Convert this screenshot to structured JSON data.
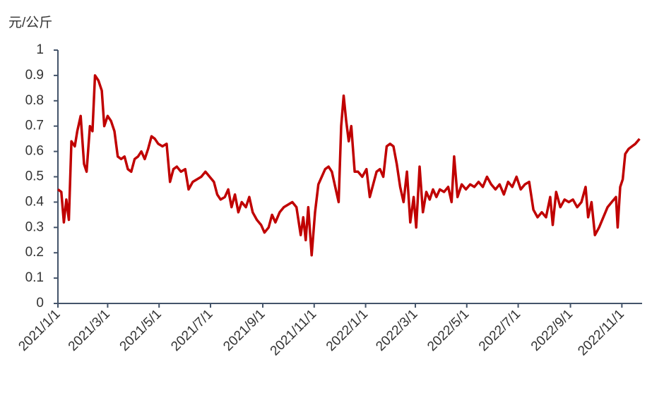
{
  "chart_data": {
    "type": "line",
    "y_label": "元/公斤",
    "x": [
      "2021/1/1",
      "2021/1/5",
      "2021/1/8",
      "2021/1/11",
      "2021/1/14",
      "2021/1/17",
      "2021/1/21",
      "2021/1/24",
      "2021/1/28",
      "2021/2/1",
      "2021/2/4",
      "2021/2/8",
      "2021/2/11",
      "2021/2/14",
      "2021/2/18",
      "2021/2/22",
      "2021/2/25",
      "2021/3/1",
      "2021/3/5",
      "2021/3/9",
      "2021/3/13",
      "2021/3/17",
      "2021/3/21",
      "2021/3/25",
      "2021/3/29",
      "2021/4/2",
      "2021/4/6",
      "2021/4/10",
      "2021/4/14",
      "2021/4/18",
      "2021/4/22",
      "2021/4/26",
      "2021/4/30",
      "2021/5/5",
      "2021/5/10",
      "2021/5/14",
      "2021/5/18",
      "2021/5/22",
      "2021/5/27",
      "2021/6/1",
      "2021/6/5",
      "2021/6/10",
      "2021/6/15",
      "2021/6/20",
      "2021/6/25",
      "2021/6/30",
      "2021/7/5",
      "2021/7/9",
      "2021/7/13",
      "2021/7/18",
      "2021/7/22",
      "2021/7/26",
      "2021/7/30",
      "2021/8/3",
      "2021/8/7",
      "2021/8/12",
      "2021/8/16",
      "2021/8/20",
      "2021/8/25",
      "2021/8/30",
      "2021/9/3",
      "2021/9/8",
      "2021/9/12",
      "2021/9/16",
      "2021/9/21",
      "2021/9/26",
      "2021/10/1",
      "2021/10/6",
      "2021/10/11",
      "2021/10/16",
      "2021/10/19",
      "2021/10/22",
      "2021/10/25",
      "2021/10/29",
      "2021/11/2",
      "2021/11/6",
      "2021/11/10",
      "2021/11/14",
      "2021/11/18",
      "2021/11/22",
      "2021/11/26",
      "2021/11/30",
      "2021/12/3",
      "2021/12/6",
      "2021/12/9",
      "2021/12/12",
      "2021/12/15",
      "2021/12/19",
      "2021/12/23",
      "2021/12/28",
      "2022/1/2",
      "2022/1/6",
      "2022/1/10",
      "2022/1/14",
      "2022/1/18",
      "2022/1/22",
      "2022/1/26",
      "2022/1/30",
      "2022/2/3",
      "2022/2/7",
      "2022/2/11",
      "2022/2/15",
      "2022/2/19",
      "2022/2/23",
      "2022/2/27",
      "2022/3/2",
      "2022/3/6",
      "2022/3/10",
      "2022/3/14",
      "2022/3/18",
      "2022/3/22",
      "2022/3/26",
      "2022/3/30",
      "2022/4/4",
      "2022/4/9",
      "2022/4/13",
      "2022/4/16",
      "2022/4/20",
      "2022/4/25",
      "2022/4/30",
      "2022/5/5",
      "2022/5/10",
      "2022/5/15",
      "2022/5/20",
      "2022/5/25",
      "2022/5/30",
      "2022/6/4",
      "2022/6/9",
      "2022/6/14",
      "2022/6/19",
      "2022/6/24",
      "2022/6/29",
      "2022/7/4",
      "2022/7/9",
      "2022/7/14",
      "2022/7/19",
      "2022/7/24",
      "2022/7/29",
      "2022/8/3",
      "2022/8/8",
      "2022/8/11",
      "2022/8/15",
      "2022/8/20",
      "2022/8/25",
      "2022/8/30",
      "2022/9/4",
      "2022/9/9",
      "2022/9/14",
      "2022/9/19",
      "2022/9/22",
      "2022/9/26",
      "2022/9/30",
      "2022/10/5",
      "2022/10/10",
      "2022/10/15",
      "2022/10/20",
      "2022/10/25",
      "2022/10/27",
      "2022/10/30",
      "2022/11/2",
      "2022/11/5",
      "2022/11/9",
      "2022/11/13",
      "2022/11/17",
      "2022/11/22"
    ],
    "series": [
      {
        "color": "#c00000",
        "values": [
          0.45,
          0.44,
          0.32,
          0.41,
          0.33,
          0.64,
          0.62,
          0.68,
          0.74,
          0.55,
          0.52,
          0.7,
          0.68,
          0.9,
          0.88,
          0.84,
          0.7,
          0.74,
          0.72,
          0.68,
          0.58,
          0.57,
          0.58,
          0.53,
          0.52,
          0.57,
          0.58,
          0.6,
          0.57,
          0.61,
          0.66,
          0.65,
          0.63,
          0.62,
          0.63,
          0.48,
          0.53,
          0.54,
          0.52,
          0.53,
          0.45,
          0.48,
          0.49,
          0.5,
          0.52,
          0.5,
          0.48,
          0.43,
          0.41,
          0.42,
          0.45,
          0.38,
          0.43,
          0.36,
          0.4,
          0.38,
          0.42,
          0.36,
          0.33,
          0.31,
          0.28,
          0.3,
          0.35,
          0.32,
          0.36,
          0.38,
          0.39,
          0.4,
          0.38,
          0.27,
          0.34,
          0.25,
          0.38,
          0.19,
          0.36,
          0.47,
          0.5,
          0.53,
          0.54,
          0.52,
          0.46,
          0.4,
          0.7,
          0.82,
          0.72,
          0.64,
          0.7,
          0.52,
          0.52,
          0.5,
          0.53,
          0.42,
          0.47,
          0.52,
          0.53,
          0.5,
          0.62,
          0.63,
          0.62,
          0.55,
          0.46,
          0.4,
          0.52,
          0.32,
          0.42,
          0.3,
          0.54,
          0.36,
          0.44,
          0.41,
          0.45,
          0.42,
          0.45,
          0.44,
          0.46,
          0.4,
          0.58,
          0.42,
          0.47,
          0.45,
          0.47,
          0.46,
          0.48,
          0.46,
          0.5,
          0.47,
          0.45,
          0.47,
          0.43,
          0.48,
          0.46,
          0.5,
          0.45,
          0.47,
          0.48,
          0.37,
          0.34,
          0.36,
          0.34,
          0.42,
          0.31,
          0.44,
          0.38,
          0.41,
          0.4,
          0.41,
          0.38,
          0.4,
          0.46,
          0.34,
          0.4,
          0.27,
          0.3,
          0.34,
          0.38,
          0.4,
          0.42,
          0.3,
          0.46,
          0.49,
          0.59,
          0.61,
          0.62,
          0.63,
          0.65
        ]
      }
    ],
    "xlim": [
      "2021/1/1",
      "2022/11/25"
    ],
    "xticks": [
      "2021/1/1",
      "2021/3/1",
      "2021/5/1",
      "2021/7/1",
      "2021/9/1",
      "2021/11/1",
      "2022/1/1",
      "2022/3/1",
      "2022/5/1",
      "2022/7/1",
      "2022/9/1",
      "2022/11/1"
    ],
    "ylim": [
      0,
      1
    ],
    "yticks": [
      0,
      0.1,
      0.2,
      0.3,
      0.4,
      0.5,
      0.6,
      0.7,
      0.8,
      0.9,
      1
    ]
  }
}
